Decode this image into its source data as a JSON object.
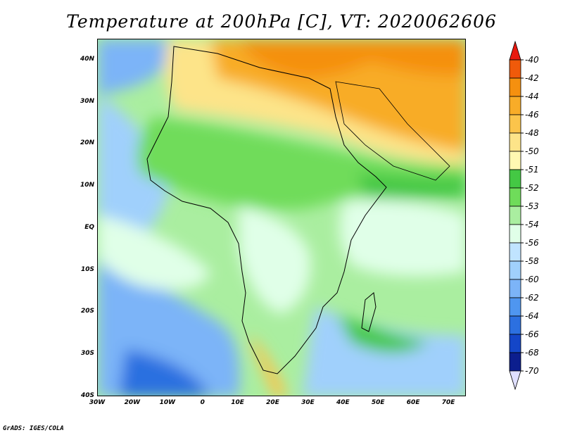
{
  "title": "Temperature at 200hPa [C], VT: 2020062606",
  "credit": "GrADS: IGES/COLA",
  "map": {
    "lon_range": [
      -30,
      75
    ],
    "lat_range": [
      -40,
      45
    ],
    "x_ticks": [
      {
        "label": "30W",
        "lon": -30
      },
      {
        "label": "20W",
        "lon": -20
      },
      {
        "label": "10W",
        "lon": -10
      },
      {
        "label": "0",
        "lon": 0
      },
      {
        "label": "10E",
        "lon": 10
      },
      {
        "label": "20E",
        "lon": 20
      },
      {
        "label": "30E",
        "lon": 30
      },
      {
        "label": "40E",
        "lon": 40
      },
      {
        "label": "50E",
        "lon": 50
      },
      {
        "label": "60E",
        "lon": 60
      },
      {
        "label": "70E",
        "lon": 70
      }
    ],
    "y_ticks": [
      {
        "label": "40N",
        "lat": 40
      },
      {
        "label": "30N",
        "lat": 30
      },
      {
        "label": "20N",
        "lat": 20
      },
      {
        "label": "10N",
        "lat": 10
      },
      {
        "label": "EQ",
        "lat": 0
      },
      {
        "label": "10S",
        "lat": -10
      },
      {
        "label": "20S",
        "lat": -20
      },
      {
        "label": "30S",
        "lat": -30
      },
      {
        "label": "40S",
        "lat": -40
      }
    ]
  },
  "colorbar": {
    "levels": [
      "-40",
      "-42",
      "-44",
      "-46",
      "-48",
      "-50",
      "-51",
      "-52",
      "-53",
      "-54",
      "-56",
      "-58",
      "-60",
      "-62",
      "-64",
      "-66",
      "-68",
      "-70"
    ],
    "colors": [
      "#e8190f",
      "#f05a0a",
      "#f5900f",
      "#f8ac28",
      "#fbc44b",
      "#fde489",
      "#fff8b2",
      "#44c844",
      "#6fdc5a",
      "#aaeea0",
      "#e0ffe8",
      "#c0e4ff",
      "#a0d0fc",
      "#7cb4f8",
      "#4f96f0",
      "#2c70e0",
      "#1446c8",
      "#0c1e8e",
      "#e0e0ff"
    ]
  }
}
